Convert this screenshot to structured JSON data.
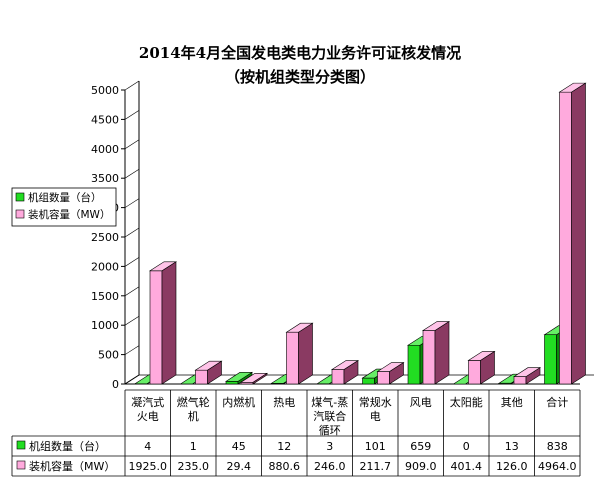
{
  "chart_data": {
    "type": "bar",
    "title_lines": [
      "2014年4月全国发电类电力业务许可证核发情况",
      "（按机组类型分类图）"
    ],
    "xlabel": "",
    "ylabel": "",
    "ylim": [
      0,
      5000
    ],
    "yticks": [
      "0",
      "500",
      "1000",
      "1500",
      "2000",
      "2500",
      "3000",
      "3500",
      "4000",
      "4500",
      "5000"
    ],
    "categories": [
      [
        "凝汽式",
        "火电"
      ],
      [
        "燃气轮",
        "机"
      ],
      [
        "内燃机"
      ],
      [
        "热电"
      ],
      [
        "煤气-蒸",
        "汽联合",
        "循环"
      ],
      [
        "常规水",
        "电"
      ],
      [
        "风电"
      ],
      [
        "太阳能"
      ],
      [
        "其他"
      ],
      [
        "合计"
      ]
    ],
    "series": [
      {
        "name": "机组数量（台）",
        "values": [
          4,
          1,
          45,
          12,
          3,
          101,
          659,
          0,
          13,
          838
        ],
        "labels": [
          "4",
          "1",
          "45",
          "12",
          "3",
          "101",
          "659",
          "0",
          "13",
          "838"
        ],
        "color": "#22dd22",
        "side_color": "#0a8a0a",
        "top_color": "#66ee66"
      },
      {
        "name": "装机容量（MW）",
        "values": [
          1925.0,
          235.0,
          29.4,
          880.6,
          246.0,
          211.7,
          909.0,
          401.4,
          126.0,
          4964.0
        ],
        "labels": [
          "1925.0",
          "235.0",
          "29.4",
          "880.6",
          "246.0",
          "211.7",
          "909.0",
          "401.4",
          "126.0",
          "4964.0"
        ],
        "color": "#ffaadd",
        "side_color": "#8a3a62",
        "top_color": "#ffc4e8"
      }
    ],
    "legend_position": "left-middle",
    "grid": false,
    "data_table": true
  }
}
